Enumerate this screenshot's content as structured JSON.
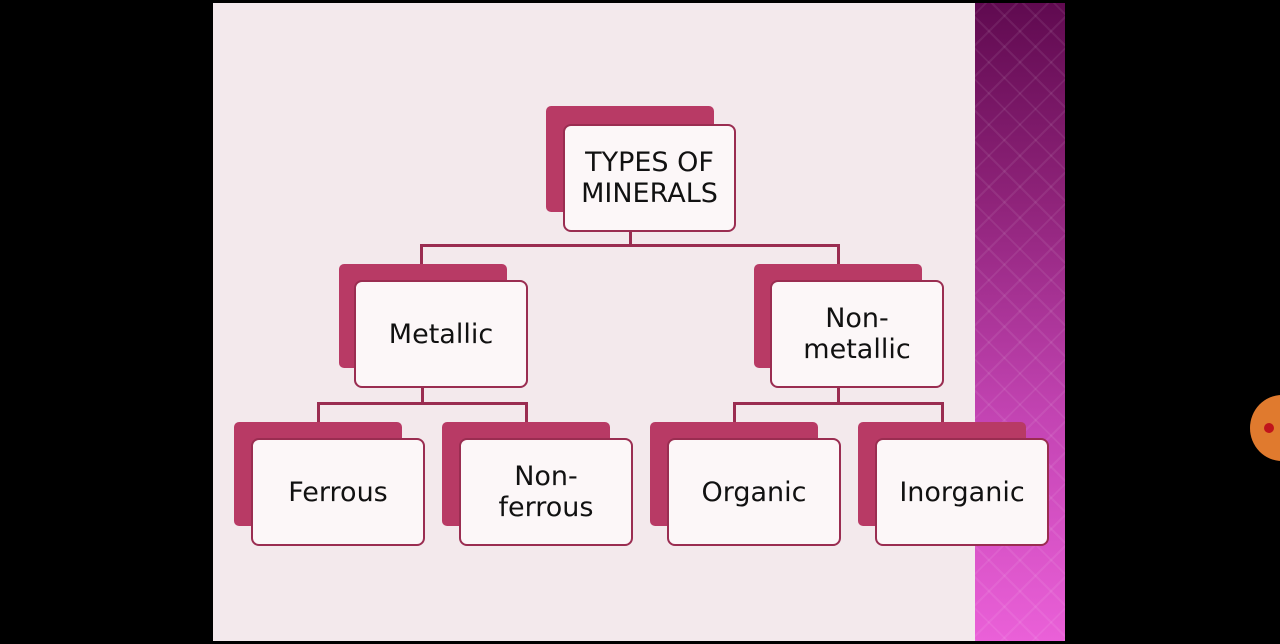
{
  "colors": {
    "accent": "#b83a65",
    "border": "#9a2d51",
    "slide_bg": "#f3e9ec",
    "box_fill": "#fcf7f8"
  },
  "diagram": {
    "root": {
      "label": "TYPES OF\nMINERALS"
    },
    "metallic": {
      "label": "Metallic"
    },
    "non_metallic": {
      "label": "Non-\nmetallic"
    },
    "ferrous": {
      "label": "Ferrous"
    },
    "non_ferrous": {
      "label": "Non-\nferrous"
    },
    "organic": {
      "label": "Organic"
    },
    "inorganic": {
      "label": "Inorganic"
    }
  },
  "overlay": {
    "record_icon": "record-icon"
  }
}
